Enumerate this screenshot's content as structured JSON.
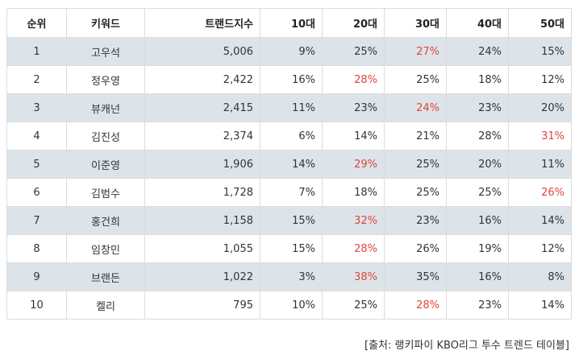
{
  "headers": [
    "순위",
    "키워드",
    "트랜드지수",
    "10대",
    "20대",
    "30대",
    "40대",
    "50대"
  ],
  "highlight_color": "#e0453a",
  "row_shade_color": "#dce4e9",
  "rows": [
    {
      "rank": "1",
      "name": "고우석",
      "index": "5,006",
      "a10": "9%",
      "a20": "25%",
      "a30": "27%",
      "a40": "24%",
      "a50": "15%",
      "hl": "a30"
    },
    {
      "rank": "2",
      "name": "정우영",
      "index": "2,422",
      "a10": "16%",
      "a20": "28%",
      "a30": "25%",
      "a40": "18%",
      "a50": "12%",
      "hl": "a20"
    },
    {
      "rank": "3",
      "name": "뷰캐넌",
      "index": "2,415",
      "a10": "11%",
      "a20": "23%",
      "a30": "24%",
      "a40": "23%",
      "a50": "20%",
      "hl": "a30"
    },
    {
      "rank": "4",
      "name": "김진성",
      "index": "2,374",
      "a10": "6%",
      "a20": "14%",
      "a30": "21%",
      "a40": "28%",
      "a50": "31%",
      "hl": "a50"
    },
    {
      "rank": "5",
      "name": "이준영",
      "index": "1,906",
      "a10": "14%",
      "a20": "29%",
      "a30": "25%",
      "a40": "20%",
      "a50": "11%",
      "hl": "a20"
    },
    {
      "rank": "6",
      "name": "김범수",
      "index": "1,728",
      "a10": "7%",
      "a20": "18%",
      "a30": "25%",
      "a40": "25%",
      "a50": "26%",
      "hl": "a50"
    },
    {
      "rank": "7",
      "name": "홍건희",
      "index": "1,158",
      "a10": "15%",
      "a20": "32%",
      "a30": "23%",
      "a40": "16%",
      "a50": "14%",
      "hl": "a20"
    },
    {
      "rank": "8",
      "name": "임창민",
      "index": "1,055",
      "a10": "15%",
      "a20": "28%",
      "a30": "26%",
      "a40": "19%",
      "a50": "12%",
      "hl": "a20"
    },
    {
      "rank": "9",
      "name": "브랜든",
      "index": "1,022",
      "a10": "3%",
      "a20": "38%",
      "a30": "35%",
      "a40": "16%",
      "a50": "8%",
      "hl": "a20"
    },
    {
      "rank": "10",
      "name": "켈리",
      "index": "795",
      "a10": "10%",
      "a20": "25%",
      "a30": "28%",
      "a40": "23%",
      "a50": "14%",
      "hl": "a30"
    }
  ],
  "source_note": "[출처: 랭키파이 KBO리그 투수 트렌드 테이블]"
}
